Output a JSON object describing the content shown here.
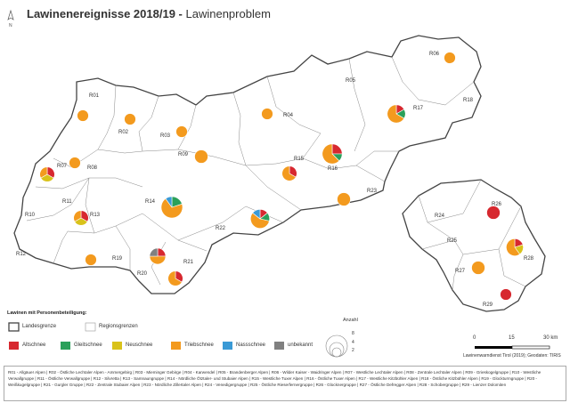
{
  "title": {
    "bold": "Lawinenereignisse 2018/19 -",
    "normal": "Lawinenproblem"
  },
  "north_label": "N",
  "colors": {
    "Altschnee": "#d7282f",
    "Gleitschnee": "#2aa05a",
    "Neuschnee": "#d9c21a",
    "Triebschnee": "#f39a1e",
    "Nassschnee": "#3a9ad6",
    "unbekannt": "#808080"
  },
  "regions": [
    {
      "id": "R01",
      "label": "R01"
    },
    {
      "id": "R02",
      "label": "R02"
    },
    {
      "id": "R03",
      "label": "R03"
    },
    {
      "id": "R04",
      "label": "R04"
    },
    {
      "id": "R05",
      "label": "R05"
    },
    {
      "id": "R06",
      "label": "R06"
    },
    {
      "id": "R07",
      "label": "R07"
    },
    {
      "id": "R08",
      "label": "R08"
    },
    {
      "id": "R09",
      "label": "R09"
    },
    {
      "id": "R10",
      "label": "R10"
    },
    {
      "id": "R11",
      "label": "R11"
    },
    {
      "id": "R12",
      "label": "R12"
    },
    {
      "id": "R13",
      "label": "R13"
    },
    {
      "id": "R14",
      "label": "R14"
    },
    {
      "id": "R15",
      "label": "R15"
    },
    {
      "id": "R16",
      "label": "R16"
    },
    {
      "id": "R17",
      "label": "R17"
    },
    {
      "id": "R18",
      "label": "R18"
    },
    {
      "id": "R19",
      "label": "R19"
    },
    {
      "id": "R20",
      "label": "R20"
    },
    {
      "id": "R21",
      "label": "R21"
    },
    {
      "id": "R22",
      "label": "R22"
    },
    {
      "id": "R23",
      "label": "R23"
    },
    {
      "id": "R24",
      "label": "R24"
    },
    {
      "id": "R25",
      "label": "R25"
    },
    {
      "id": "R26",
      "label": "R26"
    },
    {
      "id": "R27",
      "label": "R27"
    },
    {
      "id": "R28",
      "label": "R28"
    },
    {
      "id": "R29",
      "label": "R29"
    }
  ],
  "pies": [
    {
      "region": "R01",
      "slices": [
        [
          "Triebschnee",
          1
        ]
      ]
    },
    {
      "region": "R02",
      "slices": [
        [
          "Triebschnee",
          1
        ]
      ]
    },
    {
      "region": "R03",
      "slices": [
        [
          "Triebschnee",
          1
        ]
      ]
    },
    {
      "region": "R04",
      "slices": [
        [
          "Triebschnee",
          1
        ]
      ]
    },
    {
      "region": "R06",
      "slices": [
        [
          "Triebschnee",
          1
        ]
      ]
    },
    {
      "region": "R07",
      "slices": [
        [
          "Altschnee",
          1
        ],
        [
          "Neuschnee",
          1
        ],
        [
          "Triebschnee",
          1
        ]
      ]
    },
    {
      "region": "R07b",
      "slices": [
        [
          "Triebschnee",
          1
        ]
      ]
    },
    {
      "region": "R09",
      "slices": [
        [
          "Triebschnee",
          2
        ]
      ]
    },
    {
      "region": "R13",
      "slices": [
        [
          "Altschnee",
          1
        ],
        [
          "Neuschnee",
          1
        ],
        [
          "Triebschnee",
          1
        ]
      ]
    },
    {
      "region": "R14",
      "slices": [
        [
          "Gleitschnee",
          2
        ],
        [
          "Triebschnee",
          7
        ],
        [
          "Nassschnee",
          1
        ]
      ]
    },
    {
      "region": "R15",
      "slices": [
        [
          "Altschnee",
          1
        ],
        [
          "Triebschnee",
          2
        ]
      ]
    },
    {
      "region": "R16",
      "slices": [
        [
          "Altschnee",
          2
        ],
        [
          "Gleitschnee",
          1
        ],
        [
          "Triebschnee",
          5
        ]
      ]
    },
    {
      "region": "R17",
      "slices": [
        [
          "Altschnee",
          1
        ],
        [
          "Gleitschnee",
          1
        ],
        [
          "Triebschnee",
          4
        ]
      ]
    },
    {
      "region": "R19",
      "slices": [
        [
          "Triebschnee",
          1
        ]
      ]
    },
    {
      "region": "R20",
      "slices": [
        [
          "Altschnee",
          1
        ],
        [
          "Triebschnee",
          2
        ],
        [
          "unbekannt",
          1
        ]
      ]
    },
    {
      "region": "R21",
      "slices": [
        [
          "Altschnee",
          1
        ],
        [
          "Triebschnee",
          2
        ]
      ]
    },
    {
      "region": "R22",
      "slices": [
        [
          "Altschnee",
          1
        ],
        [
          "Gleitschnee",
          1
        ],
        [
          "Triebschnee",
          4
        ],
        [
          "Nassschnee",
          1
        ]
      ]
    },
    {
      "region": "R23",
      "slices": [
        [
          "Triebschnee",
          2
        ]
      ]
    },
    {
      "region": "R26",
      "slices": [
        [
          "Altschnee",
          2
        ]
      ]
    },
    {
      "region": "R27",
      "slices": [
        [
          "Triebschnee",
          2
        ]
      ]
    },
    {
      "region": "R28",
      "slices": [
        [
          "Altschnee",
          1
        ],
        [
          "Neuschnee",
          1
        ],
        [
          "Triebschnee",
          3
        ]
      ]
    },
    {
      "region": "R29",
      "slices": [
        [
          "Altschnee",
          1
        ]
      ]
    }
  ],
  "legend": {
    "title": "Lawinen mit Personenbeteiligung:",
    "boundaries": [
      {
        "label": "Landesgrenze",
        "kind": "Landesgrenze"
      },
      {
        "label": "Regionsgrenzen",
        "kind": "Regionsgrenzen"
      }
    ],
    "problems": [
      "Altschnee",
      "Gleitschnee",
      "Neuschnee",
      "Triebschnee",
      "Nassschnee",
      "unbekannt"
    ],
    "size_title": "Anzahl",
    "sizes": [
      "8",
      "4",
      "2"
    ]
  },
  "scale": {
    "labels": [
      "0",
      "15",
      "30 km"
    ]
  },
  "credits": "Lawinenwarndienst Tirol (2019); Geodaten: TIRIS",
  "footnote": "R01 - Allgäuer Alpen | R02 - Östliche Lechtaler Alpen - Ammergebirg | R03 - Mieminger Gebirge | R04 - Karwendel | R05 - Brandenberger Alpen | R06 - Wilder Kaiser - Waidringer Alpen | R07 - Westliche Lechtaler Alpen | R08 - Zentrale Lechtaler Alpen | R09 - Grieskogelgruppe | R10 - Westliche Verwallgruppe | R11 - Östliche Verwallgruppe | R12 - Silvretta | R13 - Samnaungruppe | R14 - Nördliche Ötztaler- und Stubaier Alpen | R15 - Westliche Tuxer Alpen | R16 - Östliche Tuxer Alpen | R17 - Westliche Kitzbühler Alpen | R18 - Östliche Kitzbühler Alpen | R19 - Glockturmgruppe | R20 - Weißkugelgruppe | R21 - Gurgler Gruppe | R22 - Zentrale Stubaier Alpen | R23 - Nördliche Zillertaler Alpen | R24 - Venedigergruppe | R25 - Östliche Rieserfernergruppe | R26 - Glocknergruppe | R27 - Östliche Defregger Alpen | R28 - Schobergruppe | R29 - Lienzer Dolomiten"
}
